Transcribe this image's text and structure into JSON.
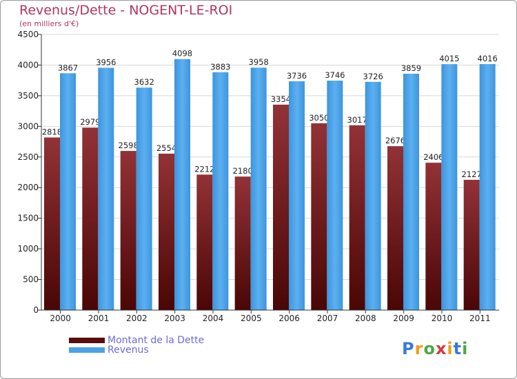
{
  "chart_data": {
    "type": "bar",
    "title": "Revenus/Dette - NOGENT-LE-ROI",
    "subtitle": "(en milliers d'€)",
    "categories": [
      "2000",
      "2001",
      "2002",
      "2003",
      "2004",
      "2005",
      "2006",
      "2007",
      "2008",
      "2009",
      "2010",
      "2011"
    ],
    "series": [
      {
        "name": "Montant de la Dette",
        "color": "#7a1c1c",
        "values": [
          2818,
          2979,
          2598,
          2554,
          2212,
          2180,
          3354,
          3050,
          3017,
          2676,
          2406,
          2127
        ]
      },
      {
        "name": "Revenus",
        "color": "#4aa3e8",
        "values": [
          3867,
          3956,
          3632,
          4098,
          3883,
          3958,
          3736,
          3746,
          3726,
          3859,
          4015,
          4016
        ]
      }
    ],
    "ylim": [
      0,
      4500
    ],
    "yticks": [
      0,
      500,
      1000,
      1500,
      2000,
      2500,
      3000,
      3500,
      4000,
      4500
    ],
    "grid": true,
    "legend_position": "bottom-left"
  },
  "legend": {
    "dette_label": "Montant de la Dette",
    "revenus_label": "Revenus"
  },
  "logo": {
    "letters": [
      "P",
      "r",
      "o",
      "x",
      "i",
      "t",
      "i"
    ],
    "colors": [
      "#3a7ad8",
      "#f39a1b",
      "#4aa846",
      "#d63a3a",
      "#f39a1b",
      "#3a7ad8",
      "#4aa846"
    ]
  }
}
